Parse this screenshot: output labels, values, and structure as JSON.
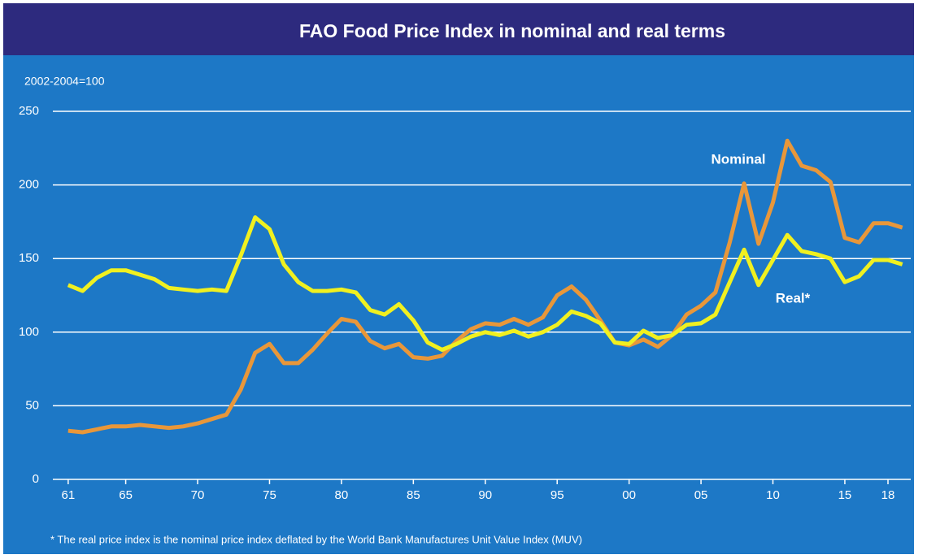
{
  "chart_data": {
    "type": "line",
    "title": "FAO Food Price Index in nominal and real terms",
    "y_label": "2002-2004=100",
    "footnote": "* The real price index is the nominal price index deflated by the World Bank Manufactures Unit Value Index (MUV)",
    "x": [
      1961,
      1962,
      1963,
      1964,
      1965,
      1966,
      1967,
      1968,
      1969,
      1970,
      1971,
      1972,
      1973,
      1974,
      1975,
      1976,
      1977,
      1978,
      1979,
      1980,
      1981,
      1982,
      1983,
      1984,
      1985,
      1986,
      1987,
      1988,
      1989,
      1990,
      1991,
      1992,
      1993,
      1994,
      1995,
      1996,
      1997,
      1998,
      1999,
      2000,
      2001,
      2002,
      2003,
      2004,
      2005,
      2006,
      2007,
      2008,
      2009,
      2010,
      2011,
      2012,
      2013,
      2014,
      2015,
      2016,
      2017,
      2018,
      2019
    ],
    "series": [
      {
        "name": "Nominal",
        "color": "#e8973a",
        "values": [
          33,
          32,
          34,
          36,
          36,
          37,
          36,
          35,
          36,
          38,
          41,
          44,
          61,
          86,
          92,
          79,
          79,
          88,
          99,
          109,
          107,
          94,
          89,
          92,
          83,
          82,
          84,
          94,
          102,
          106,
          105,
          109,
          105,
          110,
          125,
          131,
          122,
          108,
          93,
          91,
          95,
          90,
          98,
          112,
          118,
          127,
          161,
          201,
          160,
          188,
          230,
          213,
          210,
          202,
          164,
          161,
          174,
          174,
          171
        ]
      },
      {
        "name": "Real*",
        "color": "#f0f020",
        "values": [
          132,
          128,
          137,
          142,
          142,
          139,
          136,
          130,
          129,
          128,
          129,
          128,
          152,
          178,
          170,
          146,
          134,
          128,
          128,
          129,
          127,
          115,
          112,
          119,
          108,
          93,
          88,
          92,
          97,
          100,
          98,
          101,
          97,
          100,
          105,
          114,
          111,
          106,
          93,
          92,
          101,
          96,
          98,
          105,
          106,
          112,
          134,
          156,
          132,
          149,
          166,
          155,
          153,
          150,
          134,
          138,
          149,
          149,
          146
        ]
      }
    ],
    "xlim": [
      1960.5,
      2019.3
    ],
    "xticks": [
      {
        "value": 1961,
        "label": "61"
      },
      {
        "value": 1965,
        "label": "65"
      },
      {
        "value": 1970,
        "label": "70"
      },
      {
        "value": 1975,
        "label": "75"
      },
      {
        "value": 1980,
        "label": "80"
      },
      {
        "value": 1985,
        "label": "85"
      },
      {
        "value": 1990,
        "label": "90"
      },
      {
        "value": 1995,
        "label": "95"
      },
      {
        "value": 2000,
        "label": "00"
      },
      {
        "value": 2005,
        "label": "05"
      },
      {
        "value": 2010,
        "label": "10"
      },
      {
        "value": 2015,
        "label": "15"
      },
      {
        "value": 2018,
        "label": "18"
      }
    ],
    "ylim": [
      0,
      250
    ],
    "yticks": [
      0,
      50,
      100,
      150,
      200,
      250
    ],
    "grid": true
  }
}
